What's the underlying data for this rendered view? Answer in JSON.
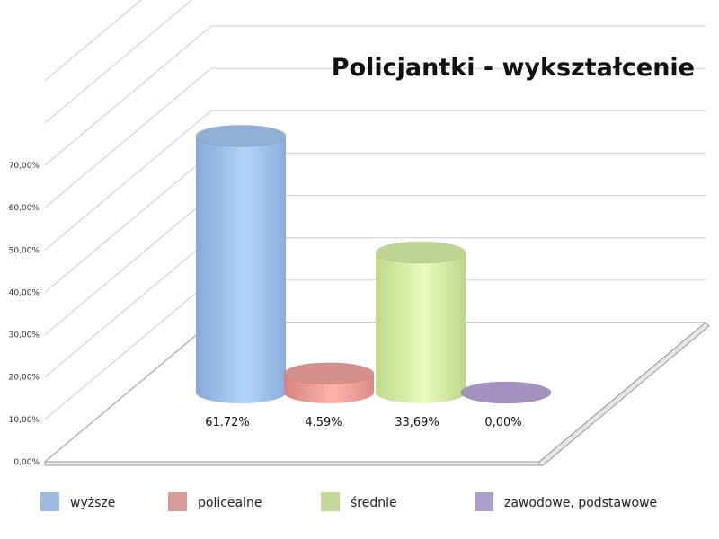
{
  "chart_data": {
    "type": "bar",
    "title": "Policjantki - wykształcenie",
    "categories": [
      "wyższe",
      "policealne",
      "średnie",
      "zawodowe, podstawowe"
    ],
    "values": [
      61.72,
      4.59,
      33.69,
      0.0
    ],
    "data_labels": [
      "61.72%",
      "4.59%",
      "33,69%",
      "0,00%"
    ],
    "ylim": [
      0,
      70
    ],
    "yticks": [
      "0,00%",
      "10,00%",
      "20,00%",
      "30,00%",
      "40,00%",
      "50,00%",
      "60,00%",
      "70,00%"
    ],
    "colors": [
      "#a6c8f2",
      "#f2a3a0",
      "#d9f0a6",
      "#b7a6d9"
    ],
    "legend_colors": [
      "#9dbbe1",
      "#d89a96",
      "#c3d99a",
      "#ad9fcb"
    ],
    "legend": "bottom",
    "grid": true,
    "style": "3d-cylinder"
  }
}
